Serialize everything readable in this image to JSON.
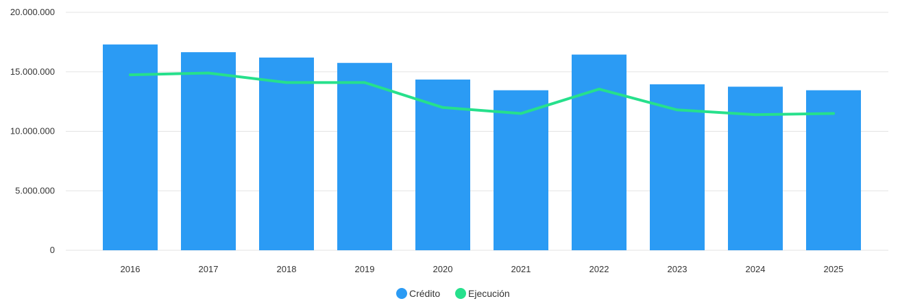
{
  "colors": {
    "credito": "#2b9bf4",
    "ejecucion": "#26e08c",
    "grid": "#e3e3e3",
    "text": "#333333"
  },
  "legend": {
    "items": [
      {
        "label": "Crédito",
        "color": "#2b9bf4"
      },
      {
        "label": "Ejecución",
        "color": "#26e08c"
      }
    ]
  },
  "chart_data": {
    "type": "bar",
    "title": "",
    "xlabel": "",
    "ylabel": "",
    "ylim": [
      0,
      20000000
    ],
    "yticks": [
      0,
      5000000,
      10000000,
      15000000,
      20000000
    ],
    "ytick_labels": [
      "0",
      "5.000.000",
      "10.000.000",
      "15.000.000",
      "20.000.000"
    ],
    "categories": [
      "2016",
      "2017",
      "2018",
      "2019",
      "2020",
      "2021",
      "2022",
      "2023",
      "2024",
      "2025"
    ],
    "grid": true,
    "legend_position": "bottom-center",
    "series": [
      {
        "name": "Crédito",
        "type": "bar",
        "values": [
          17300000,
          16650000,
          16200000,
          15750000,
          14350000,
          13450000,
          16450000,
          13950000,
          13750000,
          13450000
        ]
      },
      {
        "name": "Ejecución",
        "type": "line",
        "values": [
          14750000,
          14900000,
          14100000,
          14100000,
          12000000,
          11500000,
          13550000,
          11800000,
          11400000,
          11500000
        ]
      }
    ]
  }
}
